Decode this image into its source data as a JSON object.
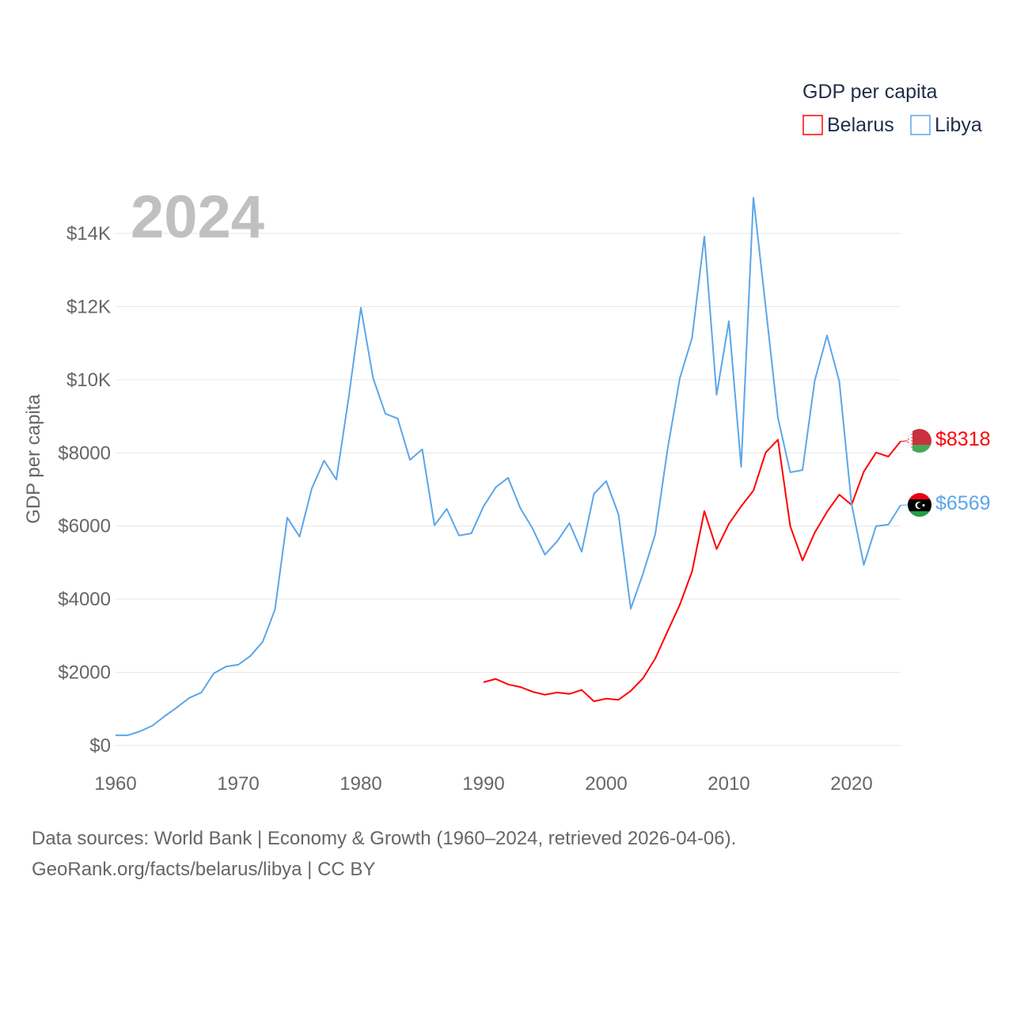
{
  "chart_data": {
    "type": "line",
    "title_year": "2024",
    "ylabel": "GDP per capita",
    "legend_title": "GDP per capita",
    "legend_position": "top-right",
    "xlim": [
      1960,
      2024
    ],
    "ylim": [
      0,
      14000
    ],
    "x_ticks": [
      1960,
      1970,
      1980,
      1990,
      2000,
      2010,
      2020
    ],
    "x_tick_labels": [
      "1960",
      "1970",
      "1980",
      "1990",
      "2000",
      "2010",
      "2020"
    ],
    "y_ticks": [
      0,
      2000,
      4000,
      6000,
      8000,
      10000,
      12000,
      14000
    ],
    "y_tick_labels": [
      "$0",
      "$2000",
      "$4000",
      "$6000",
      "$8000",
      "$10K",
      "$12K",
      "$14K"
    ],
    "grid": true,
    "series": [
      {
        "name": "Belarus",
        "color": "#ff0000",
        "end_label": "$8318",
        "start_year": 1990,
        "values": [
          1730,
          1820,
          1670,
          1600,
          1470,
          1390,
          1450,
          1410,
          1520,
          1210,
          1280,
          1250,
          1490,
          1840,
          2380,
          3120,
          3850,
          4760,
          6410,
          5370,
          6060,
          6540,
          6970,
          8010,
          8360,
          6000,
          5060,
          5820,
          6390,
          6860,
          6580,
          7490,
          8010,
          7900,
          8318
        ]
      },
      {
        "name": "Libya",
        "color": "#5ba6ea",
        "end_label": "$6569",
        "start_year": 1960,
        "values": [
          280,
          280,
          390,
          540,
          800,
          1040,
          1300,
          1450,
          1970,
          2160,
          2210,
          2450,
          2840,
          3720,
          6230,
          5710,
          7030,
          7790,
          7270,
          9500,
          11970,
          10040,
          9070,
          8940,
          7810,
          8100,
          6020,
          6470,
          5740,
          5800,
          6540,
          7060,
          7320,
          6490,
          5930,
          5220,
          5580,
          6080,
          5300,
          6880,
          7230,
          6320,
          3740,
          4700,
          5780,
          8100,
          10040,
          11150,
          13920,
          9590,
          11600,
          7620,
          14980,
          11990,
          8960,
          7470,
          7530,
          9980,
          11210,
          9960,
          6600,
          4940,
          6000,
          6040,
          6569
        ]
      }
    ]
  },
  "footer": {
    "line1": "Data sources: World Bank | Economy & Growth (1960–2024, retrieved 2026-04-06).",
    "line2": "GeoRank.org/facts/belarus/libya | CC BY"
  }
}
